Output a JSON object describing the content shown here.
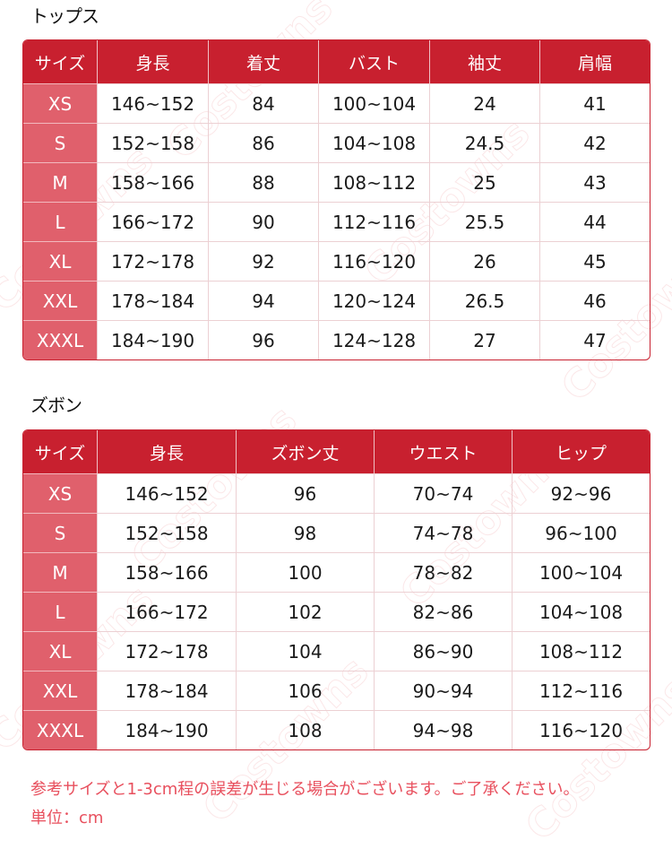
{
  "watermark": "Costowns",
  "colors": {
    "header": "#c8202f",
    "size_column": "#e0606c",
    "note": "#e8505e"
  },
  "tops": {
    "title": "トップス",
    "headers": [
      "サイズ",
      "身長",
      "着丈",
      "バスト",
      "袖丈",
      "肩幅"
    ],
    "rows": [
      [
        "XS",
        "146~152",
        "84",
        "100~104",
        "24",
        "41"
      ],
      [
        "S",
        "152~158",
        "86",
        "104~108",
        "24.5",
        "42"
      ],
      [
        "M",
        "158~166",
        "88",
        "108~112",
        "25",
        "43"
      ],
      [
        "L",
        "166~172",
        "90",
        "112~116",
        "25.5",
        "44"
      ],
      [
        "XL",
        "172~178",
        "92",
        "116~120",
        "26",
        "45"
      ],
      [
        "XXL",
        "178~184",
        "94",
        "120~124",
        "26.5",
        "46"
      ],
      [
        "XXXL",
        "184~190",
        "96",
        "124~128",
        "27",
        "47"
      ]
    ]
  },
  "pants": {
    "title": "ズボン",
    "headers": [
      "サイズ",
      "身長",
      "ズボン丈",
      "ウエスト",
      "ヒップ"
    ],
    "rows": [
      [
        "XS",
        "146~152",
        "96",
        "70~74",
        "92~96"
      ],
      [
        "S",
        "152~158",
        "98",
        "74~78",
        "96~100"
      ],
      [
        "M",
        "158~166",
        "100",
        "78~82",
        "100~104"
      ],
      [
        "L",
        "166~172",
        "102",
        "82~86",
        "104~108"
      ],
      [
        "XL",
        "172~178",
        "104",
        "86~90",
        "108~112"
      ],
      [
        "XXL",
        "178~184",
        "106",
        "90~94",
        "112~116"
      ],
      [
        "XXXL",
        "184~190",
        "108",
        "94~98",
        "116~120"
      ]
    ]
  },
  "notes": {
    "disclaimer": "参考サイズと1-3cm程の誤差が生じる場合がございます。ご了承ください。",
    "unit": "単位：cm"
  }
}
